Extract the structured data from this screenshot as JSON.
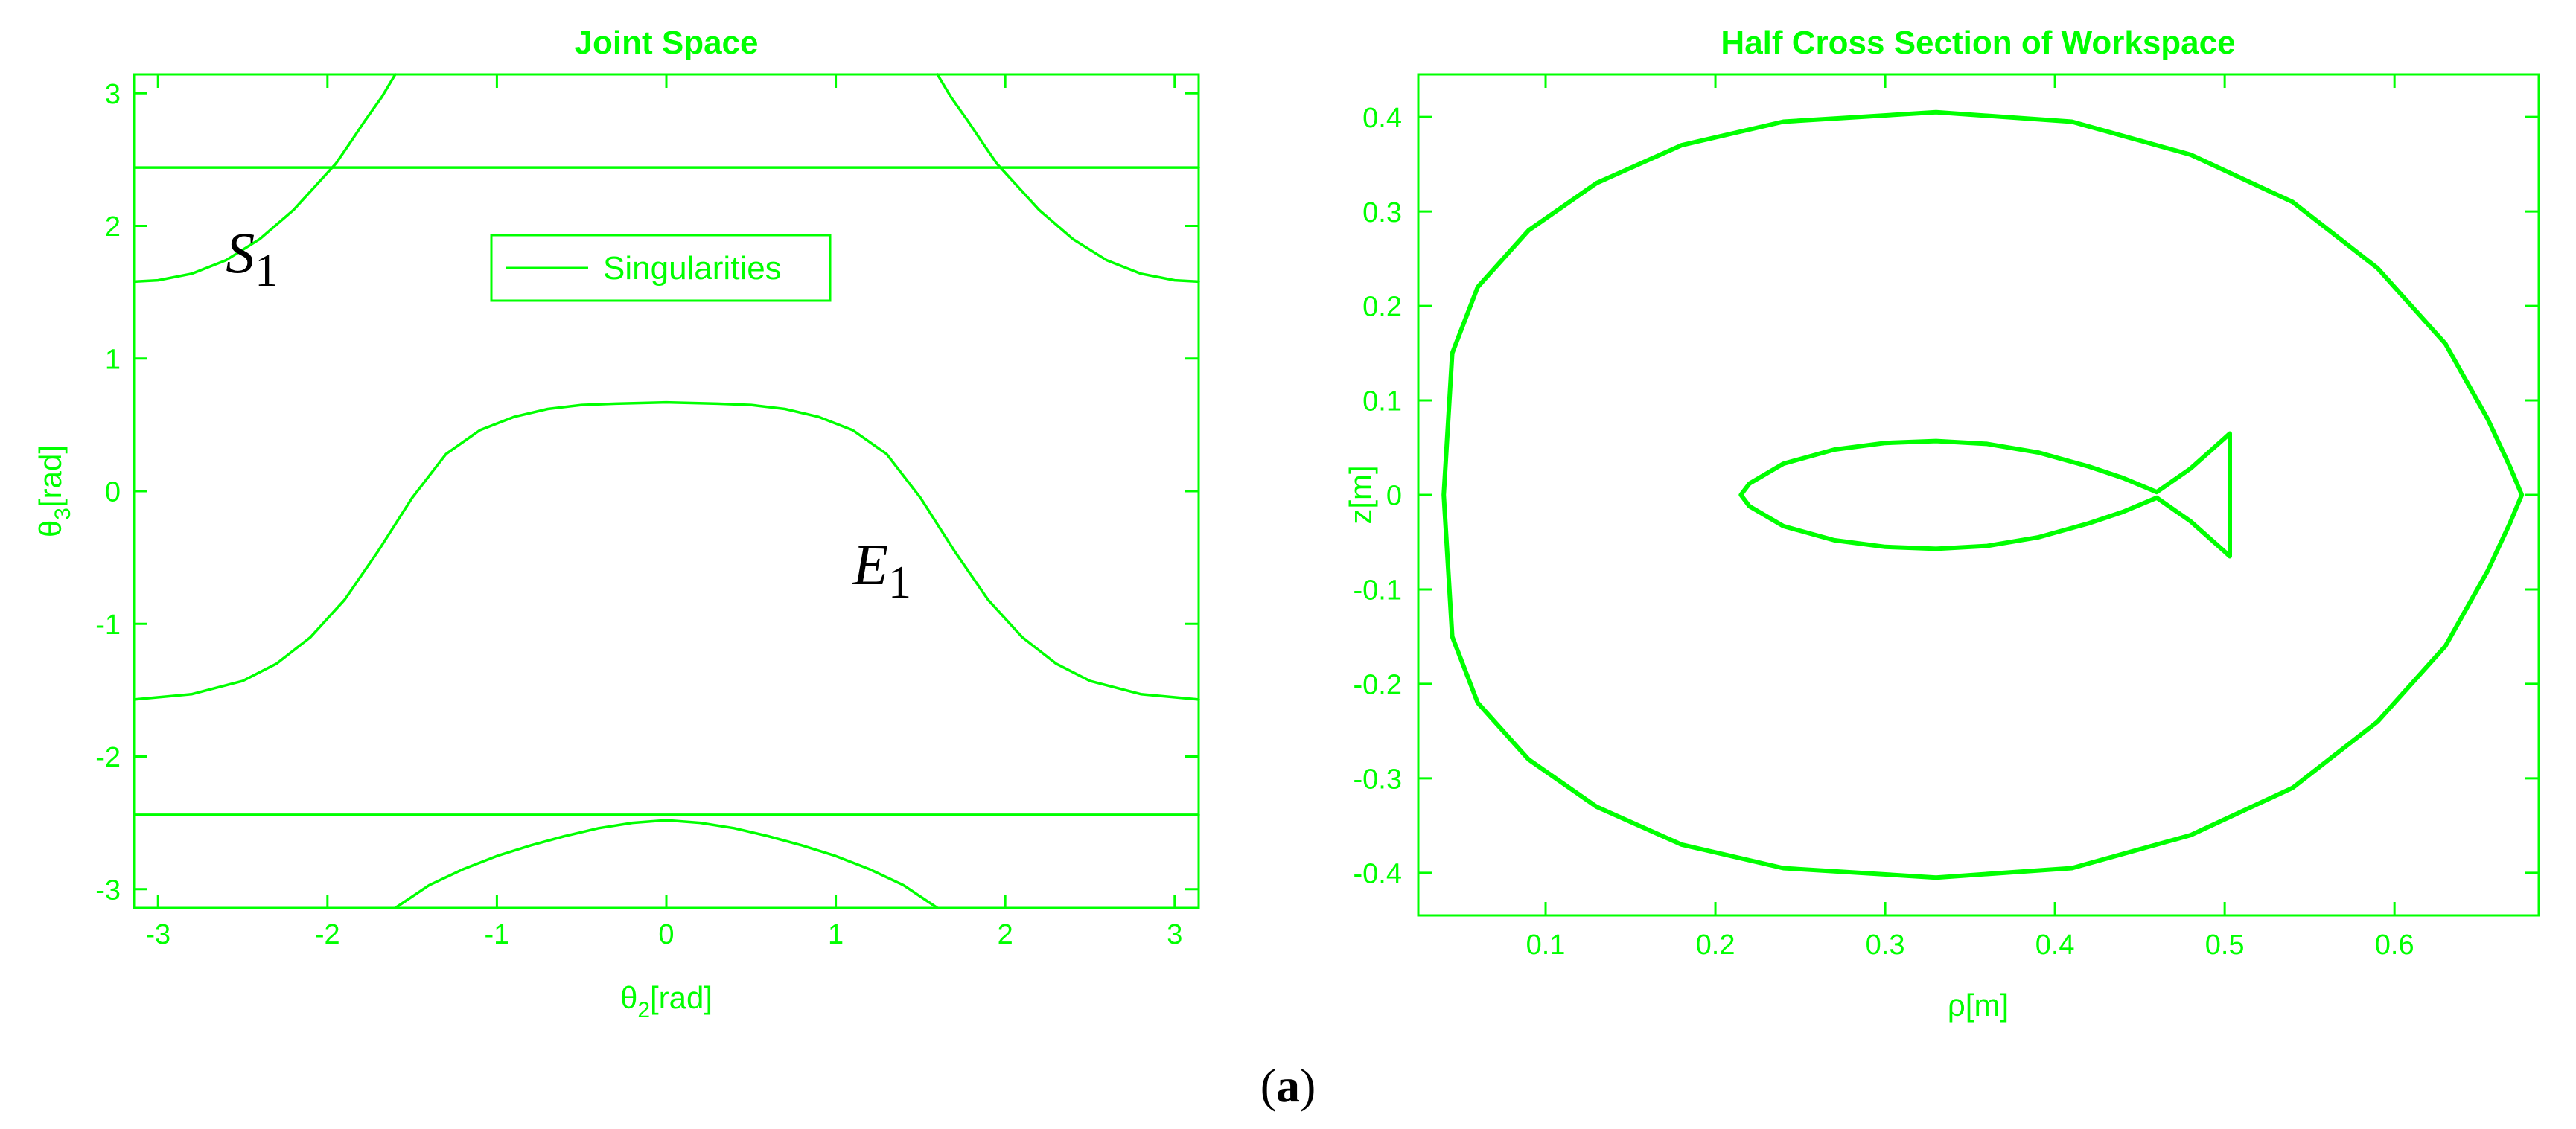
{
  "colors": {
    "line": "#00ff00",
    "background": "#ffffff",
    "text": "#000000"
  },
  "caption": {
    "open": "(",
    "letter": "a",
    "close": ")"
  },
  "chart_data": [
    {
      "type": "line",
      "title": "Joint Space",
      "xlabel": {
        "base": "θ",
        "sub": "2",
        "unit": "[rad]"
      },
      "ylabel": {
        "base": "θ",
        "sub": "3",
        "unit": "[rad]"
      },
      "xlim": [
        -3.1416,
        3.1416
      ],
      "ylim": [
        -3.1416,
        3.1416
      ],
      "xticks": [
        -3,
        -2,
        -1,
        0,
        1,
        2,
        3
      ],
      "xtick_labels": [
        "-3",
        "-2",
        "-1",
        "0",
        "1",
        "2",
        "3"
      ],
      "yticks": [
        -3,
        -2,
        -1,
        0,
        1,
        2,
        3
      ],
      "ytick_labels": [
        "-3",
        "-2",
        "-1",
        "0",
        "1",
        "2",
        "3"
      ],
      "grid": false,
      "legend": {
        "entries": [
          "Singularities"
        ],
        "location": "upper-center"
      },
      "annotations": [
        {
          "base": "S",
          "sub": "1",
          "x": -2.6,
          "y": 1.65
        },
        {
          "base": "E",
          "sub": "1",
          "x": 1.1,
          "y": -0.7
        }
      ],
      "series": [
        {
          "x": [
            -3.1416,
            3.1416
          ],
          "y": [
            2.44,
            2.44
          ]
        },
        {
          "x": [
            -3.1416,
            3.1416
          ],
          "y": [
            -2.44,
            -2.44
          ]
        },
        {
          "x": [
            -3.1416,
            -3.0,
            -2.8,
            -2.6,
            -2.4,
            -2.2,
            -2.05,
            -1.95,
            -1.88,
            -1.78,
            -1.68,
            -1.6
          ],
          "y": [
            1.58,
            1.59,
            1.64,
            1.74,
            1.9,
            2.12,
            2.33,
            2.47,
            2.6,
            2.79,
            2.97,
            3.1416
          ]
        },
        {
          "x": [
            3.1416,
            3.0,
            2.8,
            2.6,
            2.4,
            2.2,
            2.05,
            1.95,
            1.88,
            1.78,
            1.68,
            1.6
          ],
          "y": [
            1.58,
            1.59,
            1.64,
            1.74,
            1.9,
            2.12,
            2.33,
            2.47,
            2.6,
            2.79,
            2.97,
            3.1416
          ]
        },
        {
          "x": [
            -3.1416,
            -2.8,
            -2.5,
            -2.3,
            -2.1,
            -1.9,
            -1.7,
            -1.5,
            -1.3,
            -1.1,
            -0.9,
            -0.7,
            -0.5,
            -0.3,
            0.0,
            0.3,
            0.5,
            0.7,
            0.9,
            1.1,
            1.3,
            1.5,
            1.7,
            1.9,
            2.1,
            2.3,
            2.5,
            2.8,
            3.1416
          ],
          "y": [
            -1.57,
            -1.53,
            -1.43,
            -1.3,
            -1.1,
            -0.82,
            -0.45,
            -0.05,
            0.28,
            0.46,
            0.56,
            0.62,
            0.65,
            0.66,
            0.67,
            0.66,
            0.65,
            0.62,
            0.56,
            0.46,
            0.28,
            -0.05,
            -0.45,
            -0.82,
            -1.1,
            -1.3,
            -1.43,
            -1.53,
            -1.57
          ]
        },
        {
          "x": [
            -1.6,
            -1.4,
            -1.2,
            -1.0,
            -0.8,
            -0.6,
            -0.4,
            -0.2,
            0.0,
            0.2,
            0.4,
            0.6,
            0.8,
            1.0,
            1.2,
            1.4,
            1.6
          ],
          "y": [
            -3.1416,
            -2.97,
            -2.85,
            -2.75,
            -2.67,
            -2.6,
            -2.54,
            -2.5,
            -2.48,
            -2.5,
            -2.54,
            -2.6,
            -2.67,
            -2.75,
            -2.85,
            -2.97,
            -3.1416
          ]
        }
      ]
    },
    {
      "type": "line",
      "title": "Half Cross Section of Workspace",
      "xlabel": "ρ[m]",
      "ylabel": "z[m]",
      "xlim": [
        0.025,
        0.685
      ],
      "ylim": [
        -0.445,
        0.445
      ],
      "xticks": [
        0.1,
        0.2,
        0.3,
        0.4,
        0.5,
        0.6
      ],
      "xtick_labels": [
        "0.1",
        "0.2",
        "0.3",
        "0.4",
        "0.5",
        "0.6"
      ],
      "yticks": [
        -0.4,
        -0.3,
        -0.2,
        -0.1,
        0,
        0.1,
        0.2,
        0.3,
        0.4
      ],
      "ytick_labels": [
        "-0.4",
        "-0.3",
        "-0.2",
        "-0.1",
        "0",
        "0.1",
        "0.2",
        "0.3",
        "0.4"
      ],
      "grid": false,
      "series": [
        {
          "x": [
            0.04,
            0.045,
            0.06,
            0.09,
            0.13,
            0.18,
            0.24,
            0.33,
            0.41,
            0.48,
            0.54,
            0.59,
            0.63,
            0.655,
            0.668,
            0.675,
            0.668,
            0.655,
            0.63,
            0.59,
            0.54,
            0.48,
            0.41,
            0.33,
            0.24,
            0.18,
            0.13,
            0.09,
            0.06,
            0.045,
            0.04
          ],
          "y": [
            0.0,
            0.15,
            0.22,
            0.28,
            0.33,
            0.37,
            0.395,
            0.405,
            0.395,
            0.36,
            0.31,
            0.24,
            0.16,
            0.08,
            0.03,
            0.0,
            -0.03,
            -0.08,
            -0.16,
            -0.24,
            -0.31,
            -0.36,
            -0.395,
            -0.405,
            -0.395,
            -0.37,
            -0.33,
            -0.28,
            -0.22,
            -0.15,
            0.0
          ]
        },
        {
          "x": [
            0.215,
            0.22,
            0.24,
            0.27,
            0.3,
            0.33,
            0.36,
            0.39,
            0.42,
            0.44,
            0.46,
            0.48,
            0.5,
            0.503,
            0.503,
            0.5,
            0.48,
            0.46,
            0.44,
            0.42,
            0.39,
            0.36,
            0.33,
            0.3,
            0.27,
            0.24,
            0.22,
            0.215
          ],
          "y": [
            0.0,
            0.012,
            0.033,
            0.048,
            0.055,
            0.057,
            0.054,
            0.045,
            0.03,
            0.018,
            0.003,
            0.028,
            0.06,
            0.065,
            -0.065,
            -0.06,
            -0.028,
            -0.003,
            -0.018,
            -0.03,
            -0.045,
            -0.054,
            -0.057,
            -0.055,
            -0.048,
            -0.033,
            -0.012,
            0.0
          ]
        }
      ]
    }
  ]
}
